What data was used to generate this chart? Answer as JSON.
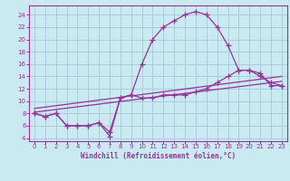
{
  "background_color": "#c8eaf0",
  "grid_color": "#aaccdd",
  "line_color": "#993399",
  "xlim": [
    -0.5,
    23.5
  ],
  "ylim": [
    3.5,
    25.5
  ],
  "xticks": [
    0,
    1,
    2,
    3,
    4,
    5,
    6,
    7,
    8,
    9,
    10,
    11,
    12,
    13,
    14,
    15,
    16,
    17,
    18,
    19,
    20,
    21,
    22,
    23
  ],
  "yticks": [
    4,
    6,
    8,
    10,
    12,
    14,
    16,
    18,
    20,
    22,
    24
  ],
  "xlabel": "Windchill (Refroidissement éolien,°C)",
  "line1_x": [
    0,
    1,
    2,
    3,
    4,
    5,
    6,
    7,
    8,
    9,
    10,
    11,
    12,
    13,
    14,
    15,
    16,
    17,
    18,
    19,
    20,
    21,
    22,
    23
  ],
  "line1_y": [
    8.0,
    7.5,
    8.0,
    6.0,
    6.0,
    6.0,
    6.5,
    5.0,
    10.5,
    11.0,
    16.0,
    20.0,
    22.0,
    23.0,
    24.0,
    24.5,
    24.0,
    22.0,
    19.0,
    15.0,
    15.0,
    14.0,
    13.0,
    12.5
  ],
  "line2_x": [
    0,
    1,
    2,
    3,
    4,
    5,
    6,
    7,
    8,
    9,
    10,
    11,
    12,
    13,
    14,
    15,
    16,
    17,
    18,
    19,
    20,
    21,
    22,
    23
  ],
  "line2_y": [
    8.0,
    7.5,
    8.0,
    6.0,
    6.0,
    6.0,
    6.5,
    4.3,
    10.5,
    11.0,
    10.5,
    10.5,
    11.0,
    11.0,
    11.0,
    11.5,
    12.0,
    13.0,
    14.0,
    15.0,
    15.0,
    14.5,
    12.5,
    12.5
  ],
  "line3_x": [
    0,
    23
  ],
  "line3_y": [
    8.2,
    13.2
  ],
  "line4_x": [
    0,
    23
  ],
  "line4_y": [
    8.8,
    14.0
  ],
  "marker": "+",
  "markersize": 4,
  "linewidth": 0.9,
  "tick_fontsize": 5.0,
  "xlabel_fontsize": 5.5
}
